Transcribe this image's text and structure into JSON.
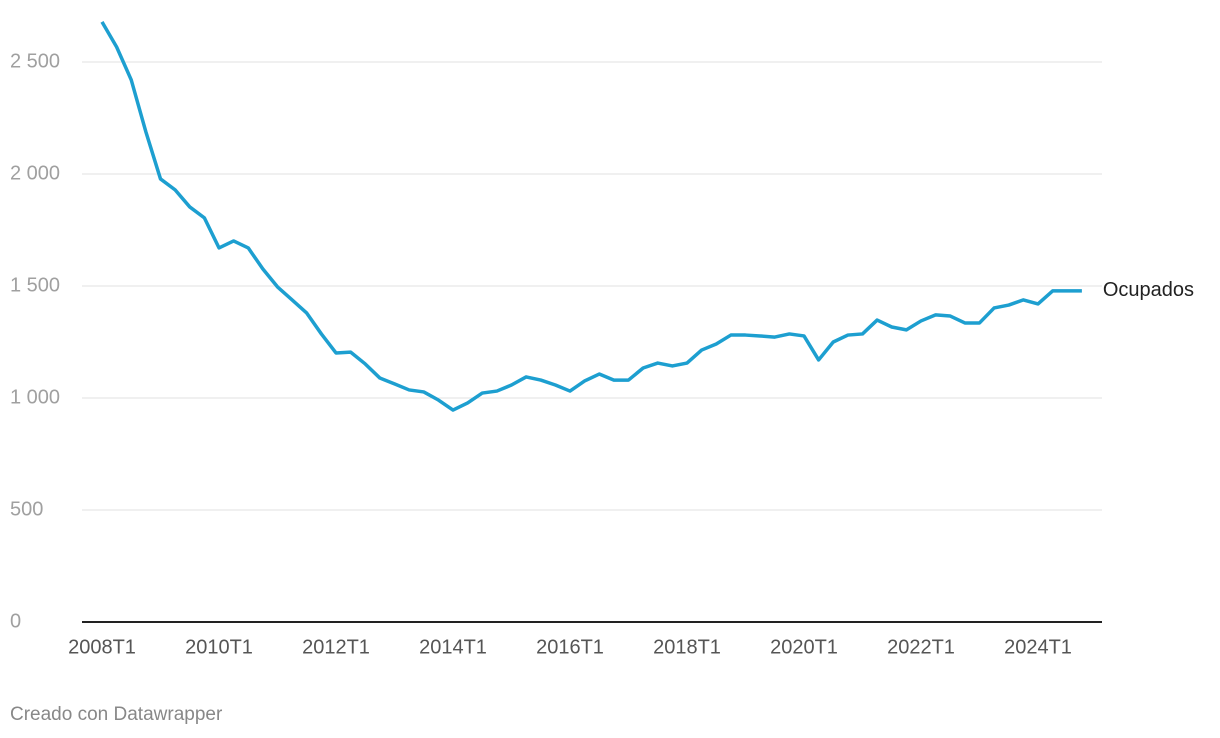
{
  "chart_data": {
    "type": "line",
    "categories": [
      "2008T1",
      null,
      null,
      null,
      null,
      null,
      null,
      null,
      "2010T1",
      null,
      null,
      null,
      null,
      null,
      null,
      null,
      "2012T1",
      null,
      null,
      null,
      null,
      null,
      null,
      null,
      "2014T1",
      null,
      null,
      null,
      null,
      null,
      null,
      null,
      "2016T1",
      null,
      null,
      null,
      null,
      null,
      null,
      null,
      "2018T1",
      null,
      null,
      null,
      null,
      null,
      null,
      null,
      "2020T1",
      null,
      null,
      null,
      null,
      null,
      null,
      null,
      "2022T1",
      null,
      null,
      null,
      null,
      null,
      null,
      null,
      "2024T1",
      null,
      null,
      null
    ],
    "series": [
      {
        "name": "Ocupados",
        "color": "#1d9fd0",
        "values": [
          2679,
          2567,
          2420,
          2188,
          1978,
          1929,
          1853,
          1804,
          1670,
          1701,
          1670,
          1576,
          1496,
          1438,
          1379,
          1286,
          1201,
          1205,
          1152,
          1089,
          1063,
          1036,
          1027,
          991,
          946,
          978,
          1022,
          1031,
          1058,
          1094,
          1080,
          1058,
          1031,
          1076,
          1107,
          1080,
          1080,
          1134,
          1156,
          1143,
          1156,
          1214,
          1241,
          1281,
          1281,
          1277,
          1272,
          1286,
          1277,
          1170,
          1250,
          1281,
          1286,
          1348,
          1317,
          1304,
          1344,
          1371,
          1366,
          1335,
          1335,
          1402,
          1415,
          1438,
          1420,
          1478,
          1478,
          1478
        ]
      }
    ],
    "ylim": [
      0,
      2700
    ],
    "yticks": [
      0,
      500,
      {
        "value": 1000,
        "label": "1 000"
      },
      {
        "value": 1500,
        "label": "1 500"
      },
      {
        "value": 2000,
        "label": "2 000"
      },
      {
        "value": 2500,
        "label": "2 500"
      }
    ],
    "grid": true,
    "footer": "Creado con Datawrapper"
  }
}
